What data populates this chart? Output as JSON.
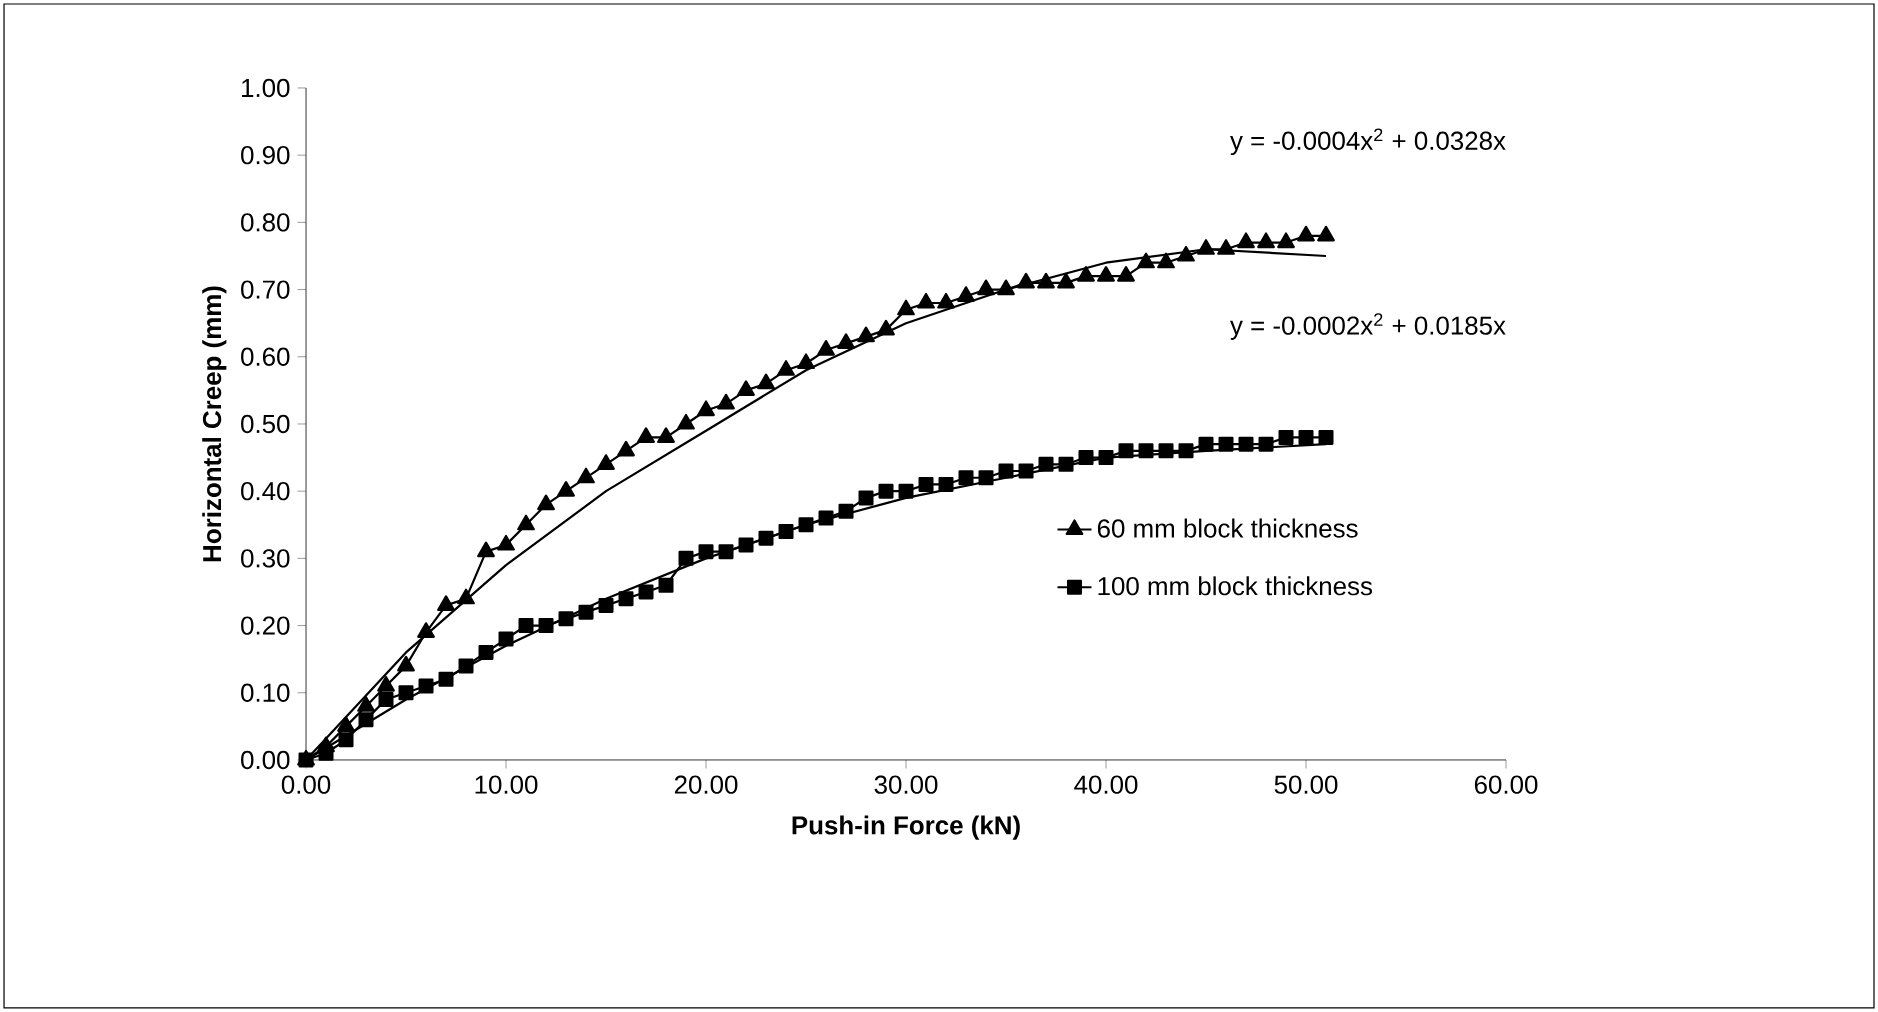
{
  "chart_data": {
    "type": "line",
    "xlabel": "Push-in Force (kN)",
    "ylabel": "Horizontal Creep (mm)",
    "xlim": [
      0,
      60
    ],
    "ylim": [
      0,
      1
    ],
    "xticks": [
      {
        "value": 0,
        "label": "0.00"
      },
      {
        "value": 10,
        "label": "10.00"
      },
      {
        "value": 20,
        "label": "20.00"
      },
      {
        "value": 30,
        "label": "30.00"
      },
      {
        "value": 40,
        "label": "40.00"
      },
      {
        "value": 50,
        "label": "50.00"
      },
      {
        "value": 60,
        "label": "60.00"
      }
    ],
    "yticks": [
      {
        "value": 0,
        "label": "0.00"
      },
      {
        "value": 0.1,
        "label": "0.10"
      },
      {
        "value": 0.2,
        "label": "0.20"
      },
      {
        "value": 0.3,
        "label": "0.30"
      },
      {
        "value": 0.4,
        "label": "0.40"
      },
      {
        "value": 0.5,
        "label": "0.50"
      },
      {
        "value": 0.6,
        "label": "0.60"
      },
      {
        "value": 0.7,
        "label": "0.70"
      },
      {
        "value": 0.8,
        "label": "0.80"
      },
      {
        "value": 0.9,
        "label": "0.90"
      },
      {
        "value": 1,
        "label": "1.00"
      }
    ],
    "grid": false,
    "legend": "right",
    "annotations": [
      "y = -0.0004x$^{2}$ + 0.0328x",
      "y = -0.0002x$^{2}$ + 0.0185x"
    ],
    "series": [
      {
        "type": "line",
        "color": "#000000",
        "marker": "none",
        "x": [
          0,
          5,
          10,
          15,
          20,
          25,
          30,
          35,
          40,
          45,
          51
        ],
        "values": [
          0,
          0.16,
          0.29,
          0.4,
          0.49,
          0.58,
          0.65,
          0.7,
          0.74,
          0.76,
          0.75
        ]
      },
      {
        "type": "line",
        "color": "#000000",
        "marker": "none",
        "x": [
          0,
          5,
          10,
          15,
          20,
          25,
          30,
          35,
          40,
          45,
          51
        ],
        "values": [
          0,
          0.09,
          0.17,
          0.24,
          0.3,
          0.35,
          0.39,
          0.42,
          0.45,
          0.46,
          0.47
        ]
      },
      {
        "name": "60 mm block thickness",
        "color": "#000000",
        "marker": "triangle",
        "x": [
          0,
          1,
          2,
          3,
          4,
          5,
          6,
          7,
          8,
          9,
          10,
          11,
          12,
          13,
          14,
          15,
          16,
          17,
          18,
          19,
          20,
          21,
          22,
          23,
          24,
          25,
          26,
          27,
          28,
          29,
          30,
          31,
          32,
          33,
          34,
          35,
          36,
          37,
          38,
          39,
          40,
          41,
          42,
          43,
          44,
          45,
          46,
          47,
          48,
          49,
          50,
          51
        ],
        "values": [
          0,
          0.02,
          0.05,
          0.08,
          0.11,
          0.14,
          0.19,
          0.23,
          0.24,
          0.31,
          0.32,
          0.35,
          0.38,
          0.4,
          0.42,
          0.44,
          0.46,
          0.48,
          0.48,
          0.5,
          0.52,
          0.53,
          0.55,
          0.56,
          0.58,
          0.59,
          0.61,
          0.62,
          0.63,
          0.64,
          0.67,
          0.68,
          0.68,
          0.69,
          0.7,
          0.7,
          0.71,
          0.71,
          0.71,
          0.72,
          0.72,
          0.72,
          0.74,
          0.74,
          0.75,
          0.76,
          0.76,
          0.77,
          0.77,
          0.77,
          0.78,
          0.78
        ]
      },
      {
        "name": "100 mm block thickness",
        "color": "#000000",
        "marker": "square",
        "x": [
          0,
          1,
          2,
          3,
          4,
          5,
          6,
          7,
          8,
          9,
          10,
          11,
          12,
          13,
          14,
          15,
          16,
          17,
          18,
          19,
          20,
          21,
          22,
          23,
          24,
          25,
          26,
          27,
          28,
          29,
          30,
          31,
          32,
          33,
          34,
          35,
          36,
          37,
          38,
          39,
          40,
          41,
          42,
          43,
          44,
          45,
          46,
          47,
          48,
          49,
          50,
          51
        ],
        "values": [
          0,
          0.01,
          0.03,
          0.06,
          0.09,
          0.1,
          0.11,
          0.12,
          0.14,
          0.16,
          0.18,
          0.2,
          0.2,
          0.21,
          0.22,
          0.23,
          0.24,
          0.25,
          0.26,
          0.3,
          0.31,
          0.31,
          0.32,
          0.33,
          0.34,
          0.35,
          0.36,
          0.37,
          0.39,
          0.4,
          0.4,
          0.41,
          0.41,
          0.42,
          0.42,
          0.43,
          0.43,
          0.44,
          0.44,
          0.45,
          0.45,
          0.46,
          0.46,
          0.46,
          0.46,
          0.47,
          0.47,
          0.47,
          0.47,
          0.48,
          0.48,
          0.48
        ]
      }
    ]
  }
}
